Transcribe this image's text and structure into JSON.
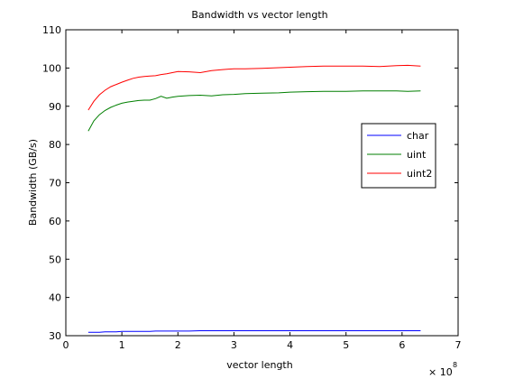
{
  "chart_data": {
    "type": "line",
    "title": "Bandwidth vs vector length",
    "xlabel": "vector length",
    "ylabel": "Bandwidth (GB/s)",
    "x_multiplier_label": "× 10",
    "x_multiplier_exponent": "8",
    "xlim": [
      0,
      7
    ],
    "ylim": [
      30,
      110
    ],
    "x_ticks": [
      0,
      1,
      2,
      3,
      4,
      5,
      6,
      7
    ],
    "y_ticks": [
      30,
      40,
      50,
      60,
      70,
      80,
      90,
      100,
      110
    ],
    "grid": false,
    "legend_position": "right",
    "x": [
      0.4,
      0.5,
      0.6,
      0.7,
      0.8,
      0.9,
      1.0,
      1.1,
      1.2,
      1.3,
      1.4,
      1.5,
      1.6,
      1.7,
      1.8,
      1.9,
      2.0,
      2.2,
      2.4,
      2.6,
      2.8,
      3.0,
      3.2,
      3.5,
      3.8,
      4.0,
      4.3,
      4.6,
      5.0,
      5.3,
      5.6,
      5.9,
      6.1,
      6.33
    ],
    "series": [
      {
        "name": "char",
        "color": "#0000ff",
        "values": [
          30.9,
          30.9,
          30.9,
          31.0,
          31.0,
          31.0,
          31.1,
          31.1,
          31.1,
          31.1,
          31.1,
          31.1,
          31.2,
          31.2,
          31.2,
          31.2,
          31.2,
          31.2,
          31.3,
          31.3,
          31.3,
          31.3,
          31.3,
          31.3,
          31.3,
          31.3,
          31.3,
          31.3,
          31.3,
          31.3,
          31.3,
          31.3,
          31.3,
          31.3
        ]
      },
      {
        "name": "uint",
        "color": "#007f00",
        "values": [
          83.5,
          86.2,
          87.8,
          88.9,
          89.7,
          90.3,
          90.8,
          91.1,
          91.3,
          91.5,
          91.6,
          91.6,
          92.0,
          92.6,
          92.1,
          92.4,
          92.6,
          92.8,
          92.9,
          92.7,
          93.0,
          93.1,
          93.3,
          93.4,
          93.5,
          93.7,
          93.8,
          93.9,
          93.9,
          94.0,
          94.0,
          94.0,
          93.9,
          94.0
        ]
      },
      {
        "name": "uint2",
        "color": "#ff0000",
        "values": [
          89.0,
          91.3,
          93.0,
          94.2,
          95.1,
          95.7,
          96.3,
          96.8,
          97.3,
          97.6,
          97.8,
          97.9,
          98.0,
          98.3,
          98.5,
          98.8,
          99.1,
          99.0,
          98.8,
          99.3,
          99.6,
          99.8,
          99.8,
          99.9,
          100.1,
          100.2,
          100.4,
          100.5,
          100.5,
          100.5,
          100.4,
          100.6,
          100.7,
          100.5
        ]
      }
    ]
  }
}
